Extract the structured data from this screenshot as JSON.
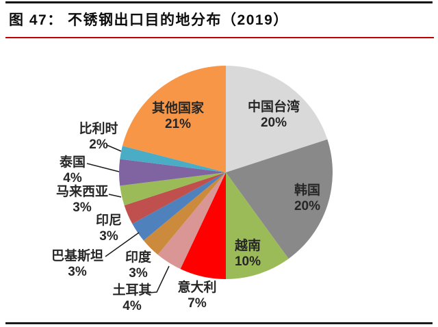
{
  "header": {
    "title": "图 47：  不锈钢出口目的地分布（2019）"
  },
  "chart_data": {
    "type": "pie",
    "title": "不锈钢出口目的地分布（2019）",
    "unit": "%",
    "direction": "clockwise",
    "start_angle_deg": 0,
    "legend": "none",
    "label_style": "category name + percent, inside for large slices, outside with leader lines for small slices",
    "slices": [
      {
        "label": "中国台湾",
        "value": 20,
        "display": "20%",
        "color": "#D9D9D9",
        "placement": "inside"
      },
      {
        "label": "韩国",
        "value": 20,
        "display": "20%",
        "color": "#898989",
        "placement": "inside"
      },
      {
        "label": "越南",
        "value": 10,
        "display": "10%",
        "color": "#9BBB59",
        "placement": "inside"
      },
      {
        "label": "意大利",
        "value": 7,
        "display": "7%",
        "color": "#FF0000",
        "placement": "outside"
      },
      {
        "label": "土耳其",
        "value": 4,
        "display": "4%",
        "color": "#D99694",
        "placement": "outside"
      },
      {
        "label": "印度",
        "value": 3,
        "display": "3%",
        "color": "#CB8A3C",
        "placement": "outside"
      },
      {
        "label": "巴基斯坦",
        "value": 3,
        "display": "3%",
        "color": "#4F81BD",
        "placement": "outside"
      },
      {
        "label": "印尼",
        "value": 3,
        "display": "3%",
        "color": "#C0504D",
        "placement": "outside"
      },
      {
        "label": "马来西亚",
        "value": 3,
        "display": "3%",
        "color": "#9BBB59",
        "placement": "outside"
      },
      {
        "label": "泰国",
        "value": 4,
        "display": "4%",
        "color": "#8064A2",
        "placement": "outside"
      },
      {
        "label": "比利时",
        "value": 2,
        "display": "2%",
        "color": "#4BACC6",
        "placement": "outside"
      },
      {
        "label": "其他国家",
        "value": 21,
        "display": "21%",
        "color": "#F79646",
        "placement": "inside"
      }
    ]
  }
}
